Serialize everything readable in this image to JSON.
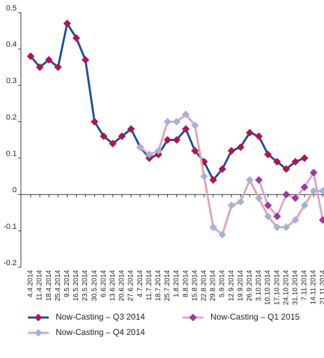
{
  "chart_data": {
    "type": "line",
    "categories": [
      "4.4.2014",
      "11.4.2014",
      "18.4.2014",
      "25.4.2014",
      "9.5.2014",
      "16.5.2014",
      "23.5.2014",
      "30.5.2014",
      "6.6.2014",
      "13.6.2014",
      "20.6.2014",
      "27.6.2014",
      "4.7.2014",
      "11.7.2014",
      "18.7.2014",
      "25.7.2014",
      "1.8.2014",
      "8.8.2014",
      "15.8.2014",
      "22.8.2014",
      "29.8.2014",
      "5.9.2014",
      "12.9.2014",
      "19.9.2014",
      "26.9.2014",
      "3.10.2014",
      "10.10.2014",
      "17.10.2014",
      "24.10.2014",
      "31.10.2014",
      "7.11.2014",
      "14.11.2014",
      "21.11.2014"
    ],
    "series": [
      {
        "name": "Now-Casting – Q3 2014",
        "color": "#1a4f9c",
        "marker_color": "#b5134b",
        "values": [
          0.38,
          0.35,
          0.37,
          0.35,
          0.47,
          0.43,
          0.37,
          0.2,
          0.16,
          0.14,
          0.16,
          0.18,
          0.13,
          0.1,
          0.11,
          0.15,
          0.15,
          0.18,
          0.12,
          0.09,
          0.04,
          0.07,
          0.12,
          0.13,
          0.17,
          0.16,
          0.11,
          0.09,
          0.07,
          0.09,
          0.1,
          null,
          null
        ]
      },
      {
        "name": "Now-Casting – Q4 2014",
        "color": "#e8a3a8",
        "marker_color": "#9fb4dd",
        "values": [
          null,
          null,
          null,
          null,
          null,
          null,
          null,
          null,
          null,
          null,
          null,
          null,
          0.13,
          0.11,
          0.12,
          0.2,
          0.2,
          0.22,
          0.19,
          0.05,
          -0.09,
          -0.11,
          -0.03,
          -0.02,
          0.04,
          -0.01,
          -0.06,
          -0.09,
          -0.09,
          -0.07,
          -0.03,
          0.01,
          0.01
        ]
      },
      {
        "name": "Now-Casting – Q1 2015",
        "color": "#dba6d2",
        "marker_color": "#9b3aa0",
        "values": [
          null,
          null,
          null,
          null,
          null,
          null,
          null,
          null,
          null,
          null,
          null,
          null,
          null,
          null,
          null,
          null,
          null,
          null,
          null,
          null,
          null,
          null,
          null,
          null,
          null,
          0.04,
          -0.03,
          -0.06,
          0.0,
          -0.01,
          0.02,
          0.06,
          -0.07
        ]
      }
    ],
    "ylim": [
      -0.2,
      0.5
    ],
    "yticks": [
      -0.2,
      -0.1,
      0,
      0.1,
      0.2,
      0.3,
      0.4,
      0.5
    ],
    "grid": false
  }
}
